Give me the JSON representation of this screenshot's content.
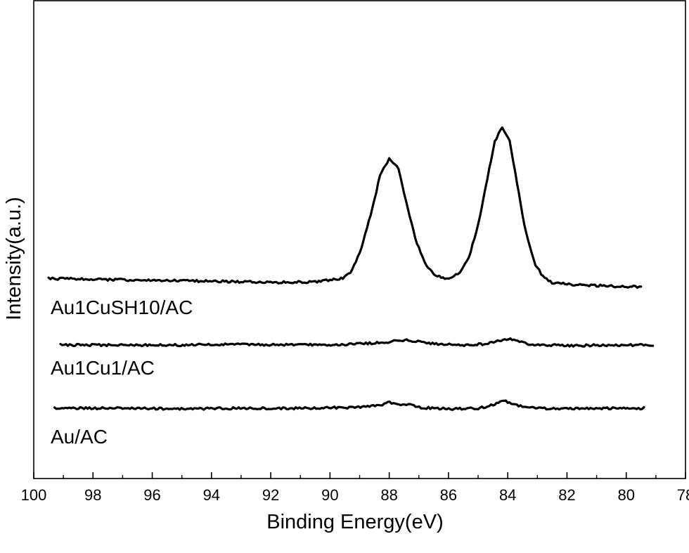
{
  "chart_data": {
    "type": "line",
    "title": "",
    "xlabel": "Binding Energy(eV)",
    "ylabel": "Intensity(a.u.)",
    "xlim": [
      100,
      78
    ],
    "x_reversed": true,
    "y_ticks_shown": false,
    "grid": false,
    "legend": "none (series labelled directly beneath each trace)",
    "x_ticks": [
      100,
      98,
      96,
      94,
      92,
      90,
      88,
      86,
      84,
      82,
      80,
      78
    ],
    "series": [
      {
        "name": "Au1CuSH10/AC",
        "x_range": [
          99.5,
          79.5
        ],
        "points": [
          [
            99.5,
            2.05
          ],
          [
            98.0,
            2.04
          ],
          [
            96.0,
            2.02
          ],
          [
            94.0,
            2.01
          ],
          [
            92.0,
            1.99
          ],
          [
            90.5,
            2.0
          ],
          [
            89.6,
            2.05
          ],
          [
            89.3,
            2.15
          ],
          [
            89.0,
            2.45
          ],
          [
            88.6,
            3.1
          ],
          [
            88.3,
            3.7
          ],
          [
            88.0,
            3.95
          ],
          [
            87.7,
            3.8
          ],
          [
            87.4,
            3.2
          ],
          [
            87.1,
            2.65
          ],
          [
            86.8,
            2.3
          ],
          [
            86.5,
            2.12
          ],
          [
            86.2,
            2.06
          ],
          [
            85.9,
            2.07
          ],
          [
            85.6,
            2.15
          ],
          [
            85.3,
            2.4
          ],
          [
            85.0,
            2.9
          ],
          [
            84.7,
            3.6
          ],
          [
            84.45,
            4.2
          ],
          [
            84.2,
            4.45
          ],
          [
            83.95,
            4.25
          ],
          [
            83.7,
            3.6
          ],
          [
            83.4,
            2.8
          ],
          [
            83.1,
            2.3
          ],
          [
            82.8,
            2.07
          ],
          [
            82.5,
            1.98
          ],
          [
            81.5,
            1.95
          ],
          [
            80.5,
            1.93
          ],
          [
            79.5,
            1.92
          ]
        ]
      },
      {
        "name": "Au1Cu1/AC",
        "x_range": [
          99.1,
          79.1
        ],
        "points": [
          [
            99.1,
            1.0
          ],
          [
            97.0,
            1.0
          ],
          [
            95.0,
            1.0
          ],
          [
            93.0,
            1.01
          ],
          [
            91.0,
            1.0
          ],
          [
            89.5,
            1.01
          ],
          [
            88.5,
            1.03
          ],
          [
            87.8,
            1.06
          ],
          [
            87.4,
            1.08
          ],
          [
            87.0,
            1.05
          ],
          [
            86.3,
            1.01
          ],
          [
            85.5,
            1.0
          ],
          [
            84.7,
            1.02
          ],
          [
            84.3,
            1.07
          ],
          [
            84.0,
            1.1
          ],
          [
            83.7,
            1.06
          ],
          [
            83.2,
            1.01
          ],
          [
            82.0,
            0.99
          ],
          [
            80.5,
            1.0
          ],
          [
            79.1,
            1.0
          ]
        ]
      },
      {
        "name": "Au/AC",
        "x_range": [
          99.3,
          79.4
        ],
        "points": [
          [
            99.3,
            0.0
          ],
          [
            97.0,
            0.0
          ],
          [
            95.0,
            -0.01
          ],
          [
            93.0,
            0.0
          ],
          [
            91.0,
            0.0
          ],
          [
            89.5,
            0.01
          ],
          [
            88.4,
            0.04
          ],
          [
            88.0,
            0.09
          ],
          [
            87.7,
            0.06
          ],
          [
            87.3,
            0.05
          ],
          [
            86.9,
            0.01
          ],
          [
            86.0,
            -0.01
          ],
          [
            85.0,
            0.0
          ],
          [
            84.5,
            0.05
          ],
          [
            84.2,
            0.12
          ],
          [
            83.9,
            0.09
          ],
          [
            83.5,
            0.02
          ],
          [
            82.5,
            -0.01
          ],
          [
            81.0,
            0.0
          ],
          [
            79.4,
            0.0
          ]
        ]
      }
    ]
  }
}
